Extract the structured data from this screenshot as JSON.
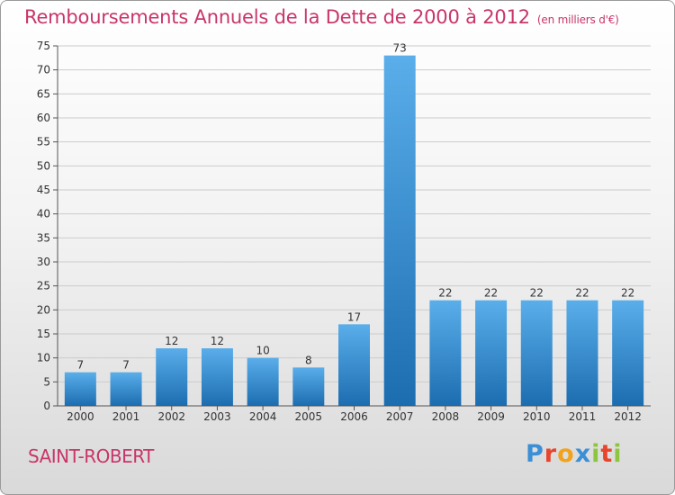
{
  "title": "Remboursements Annuels de la Dette de 2000 à 2012",
  "subtitle": "(en milliers d'€)",
  "place": "SAINT-ROBERT",
  "logo": {
    "letters": [
      "P",
      "r",
      "o",
      "x",
      "i",
      "t",
      "i"
    ],
    "colors": [
      "#3b8fd6",
      "#e8452c",
      "#f2a31b",
      "#3b8fd6",
      "#8cc63f",
      "#e8452c",
      "#8cc63f"
    ]
  },
  "colors": {
    "title": "#c8356a",
    "bar_light": "#5aaeea",
    "bar_dark": "#1c6db0",
    "grid": "#cccccc"
  },
  "chart_data": {
    "type": "bar",
    "categories": [
      "2000",
      "2001",
      "2002",
      "2003",
      "2004",
      "2005",
      "2006",
      "2007",
      "2008",
      "2009",
      "2010",
      "2011",
      "2012"
    ],
    "values": [
      7,
      7,
      12,
      12,
      10,
      8,
      17,
      73,
      22,
      22,
      22,
      22,
      22
    ],
    "ylim": [
      0,
      75
    ],
    "yticks": [
      0,
      5,
      10,
      15,
      20,
      25,
      30,
      35,
      40,
      45,
      50,
      55,
      60,
      65,
      70,
      75
    ],
    "grid": true,
    "data_labels": true
  }
}
